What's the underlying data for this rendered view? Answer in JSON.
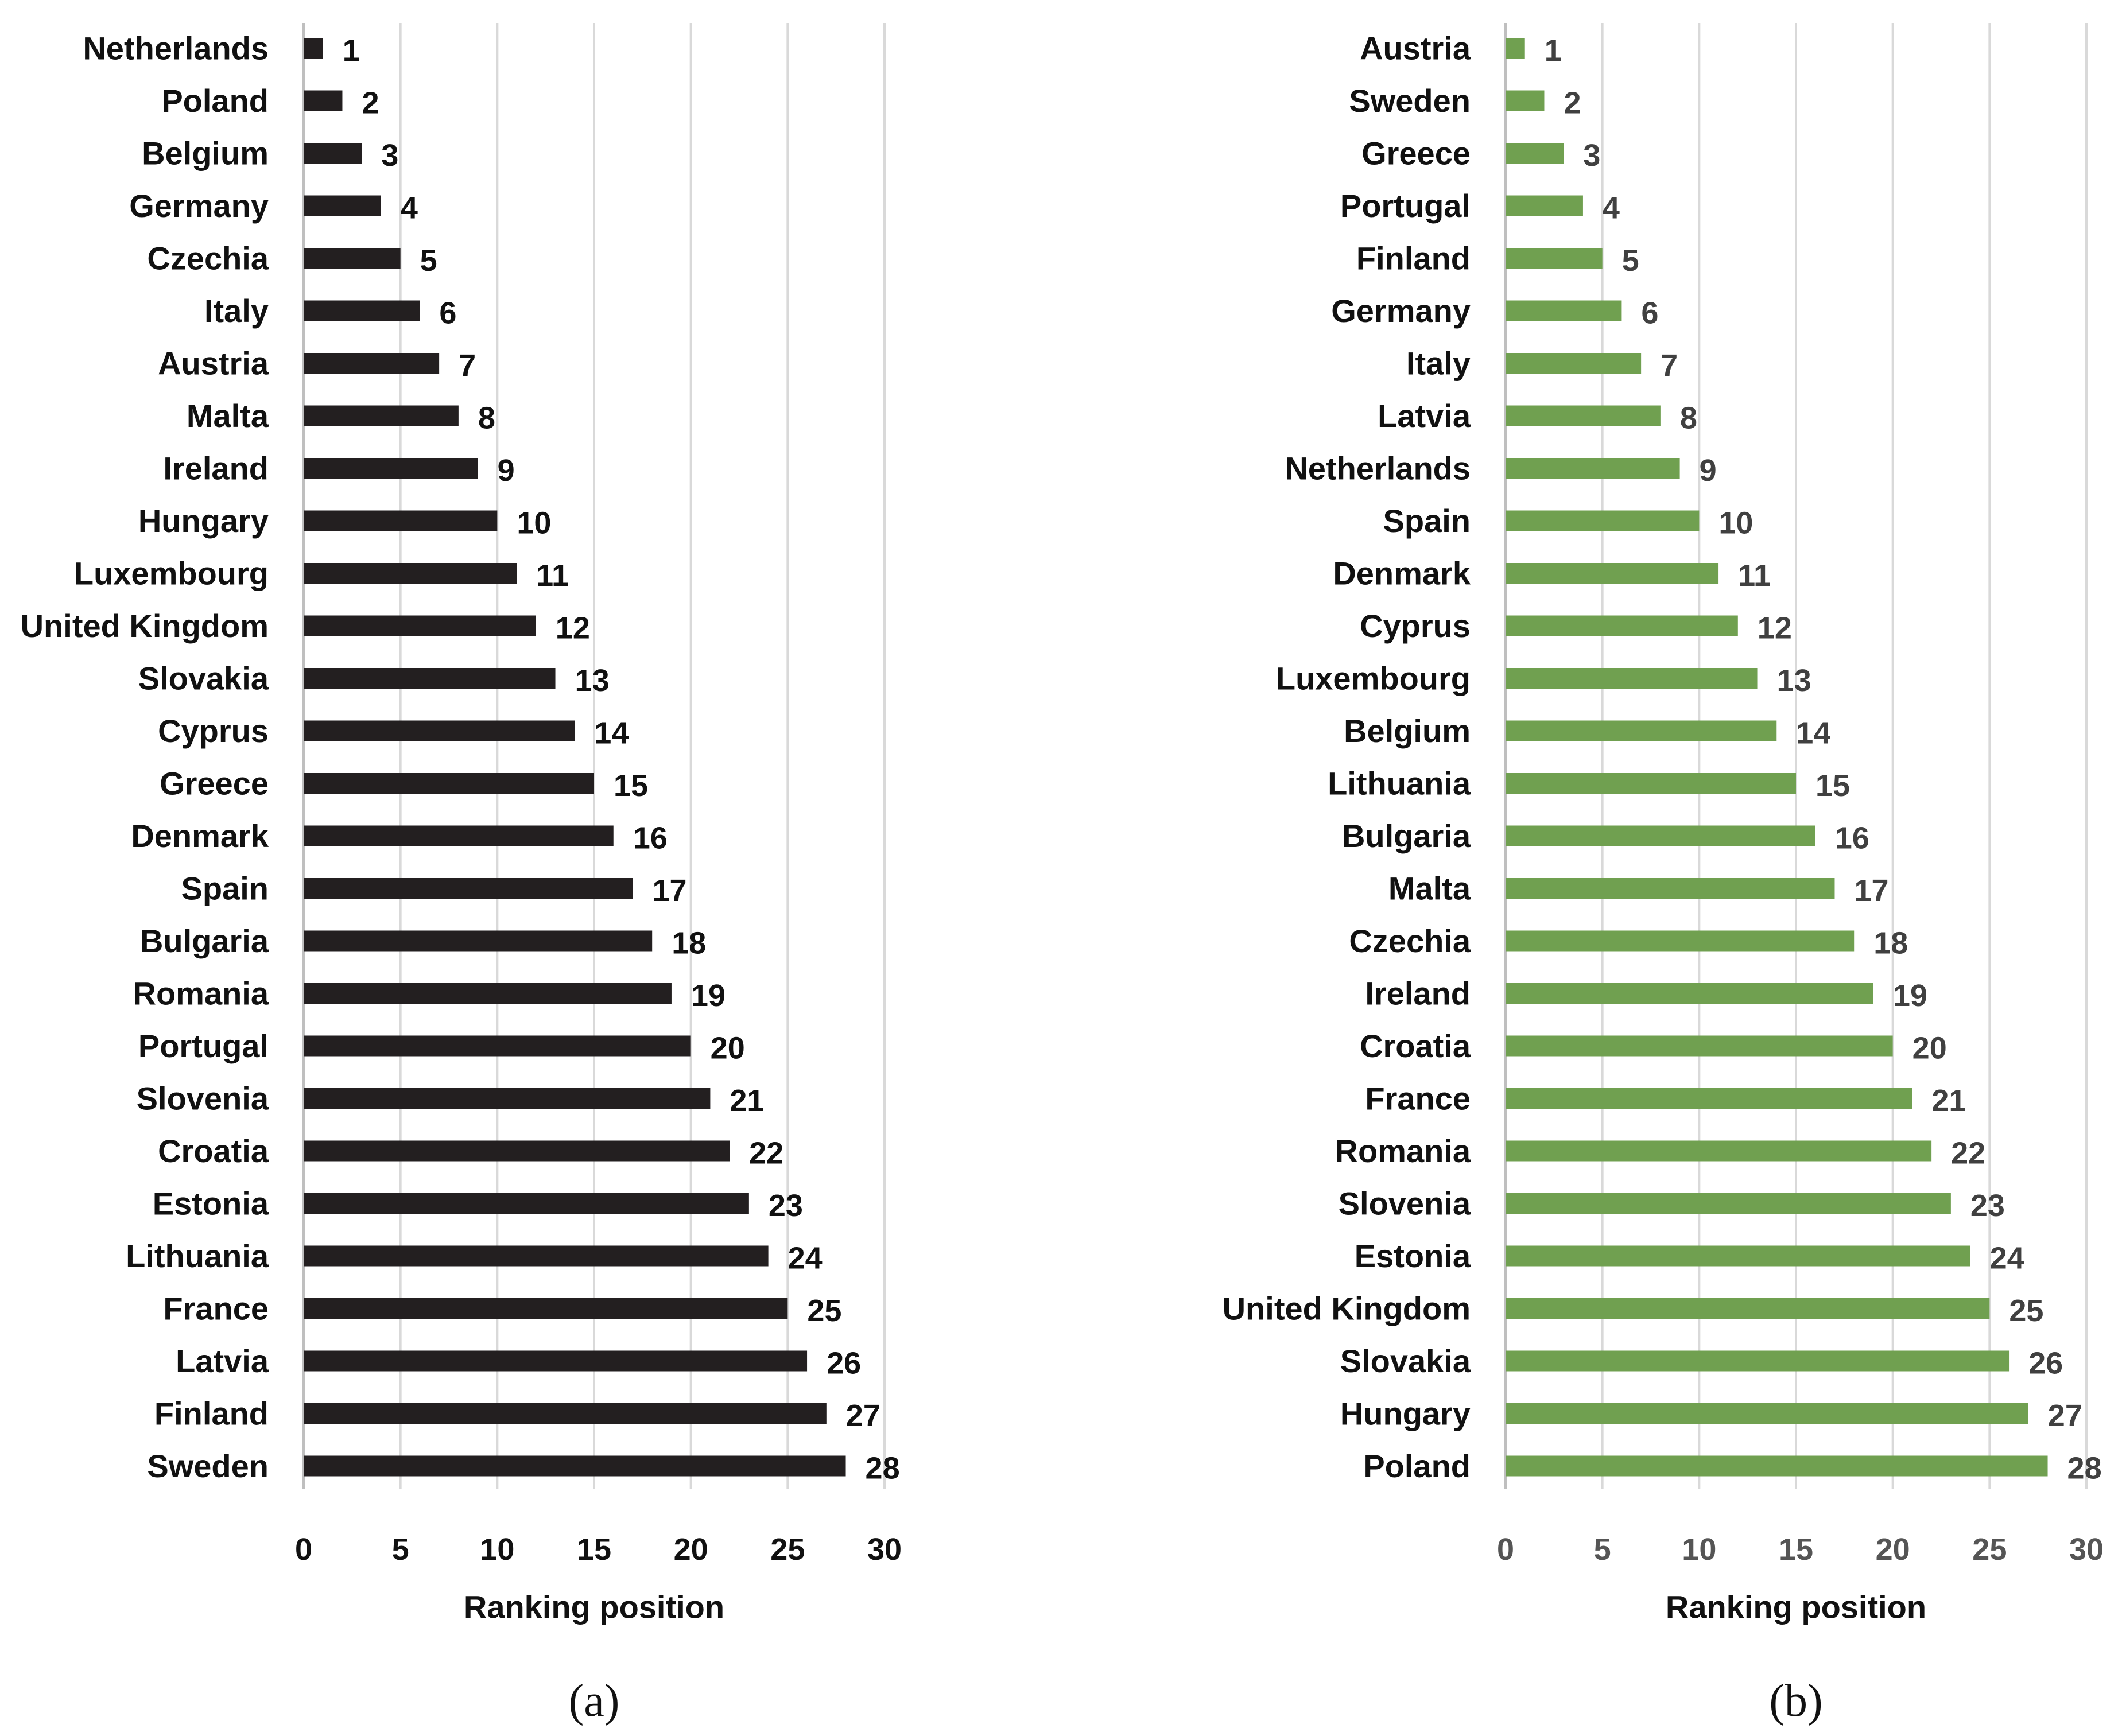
{
  "chart_data": [
    {
      "type": "bar",
      "orientation": "horizontal",
      "panel_label": "(a)",
      "categories": [
        "Netherlands",
        "Poland",
        "Belgium",
        "Germany",
        "Czechia",
        "Italy",
        "Austria",
        "Malta",
        "Ireland",
        "Hungary",
        "Luxembourg",
        "United Kingdom",
        "Slovakia",
        "Cyprus",
        "Greece",
        "Denmark",
        "Spain",
        "Bulgaria",
        "Romania",
        "Portugal",
        "Slovenia",
        "Croatia",
        "Estonia",
        "Lithuania",
        "France",
        "Latvia",
        "Finland",
        "Sweden"
      ],
      "values": [
        1,
        2,
        3,
        4,
        5,
        6,
        7,
        8,
        9,
        10,
        11,
        12,
        13,
        14,
        15,
        16,
        17,
        18,
        19,
        20,
        21,
        22,
        23,
        24,
        25,
        26,
        27,
        28
      ],
      "xlabel": "Ranking position",
      "xlim": [
        0,
        30
      ],
      "xticks": [
        0,
        5,
        10,
        15,
        20,
        25,
        30
      ],
      "bar_color": "#231f20",
      "label_color": "#111111",
      "grid": true
    },
    {
      "type": "bar",
      "orientation": "horizontal",
      "panel_label": "(b)",
      "categories": [
        "Austria",
        "Sweden",
        "Greece",
        "Portugal",
        "Finland",
        "Germany",
        "Italy",
        "Latvia",
        "Netherlands",
        "Spain",
        "Denmark",
        "Cyprus",
        "Luxembourg",
        "Belgium",
        "Lithuania",
        "Bulgaria",
        "Malta",
        "Czechia",
        "Ireland",
        "Croatia",
        "France",
        "Romania",
        "Slovenia",
        "Estonia",
        "United Kingdom",
        "Slovakia",
        "Hungary",
        "Poland"
      ],
      "values": [
        1,
        2,
        3,
        4,
        5,
        6,
        7,
        8,
        9,
        10,
        11,
        12,
        13,
        14,
        15,
        16,
        17,
        18,
        19,
        20,
        21,
        22,
        23,
        24,
        25,
        26,
        27,
        28
      ],
      "xlabel": "Ranking position",
      "xlim": [
        0,
        30
      ],
      "xticks": [
        0,
        5,
        10,
        15,
        20,
        25,
        30
      ],
      "bar_color": "#70a050",
      "label_color": "#404040",
      "grid": true
    }
  ]
}
